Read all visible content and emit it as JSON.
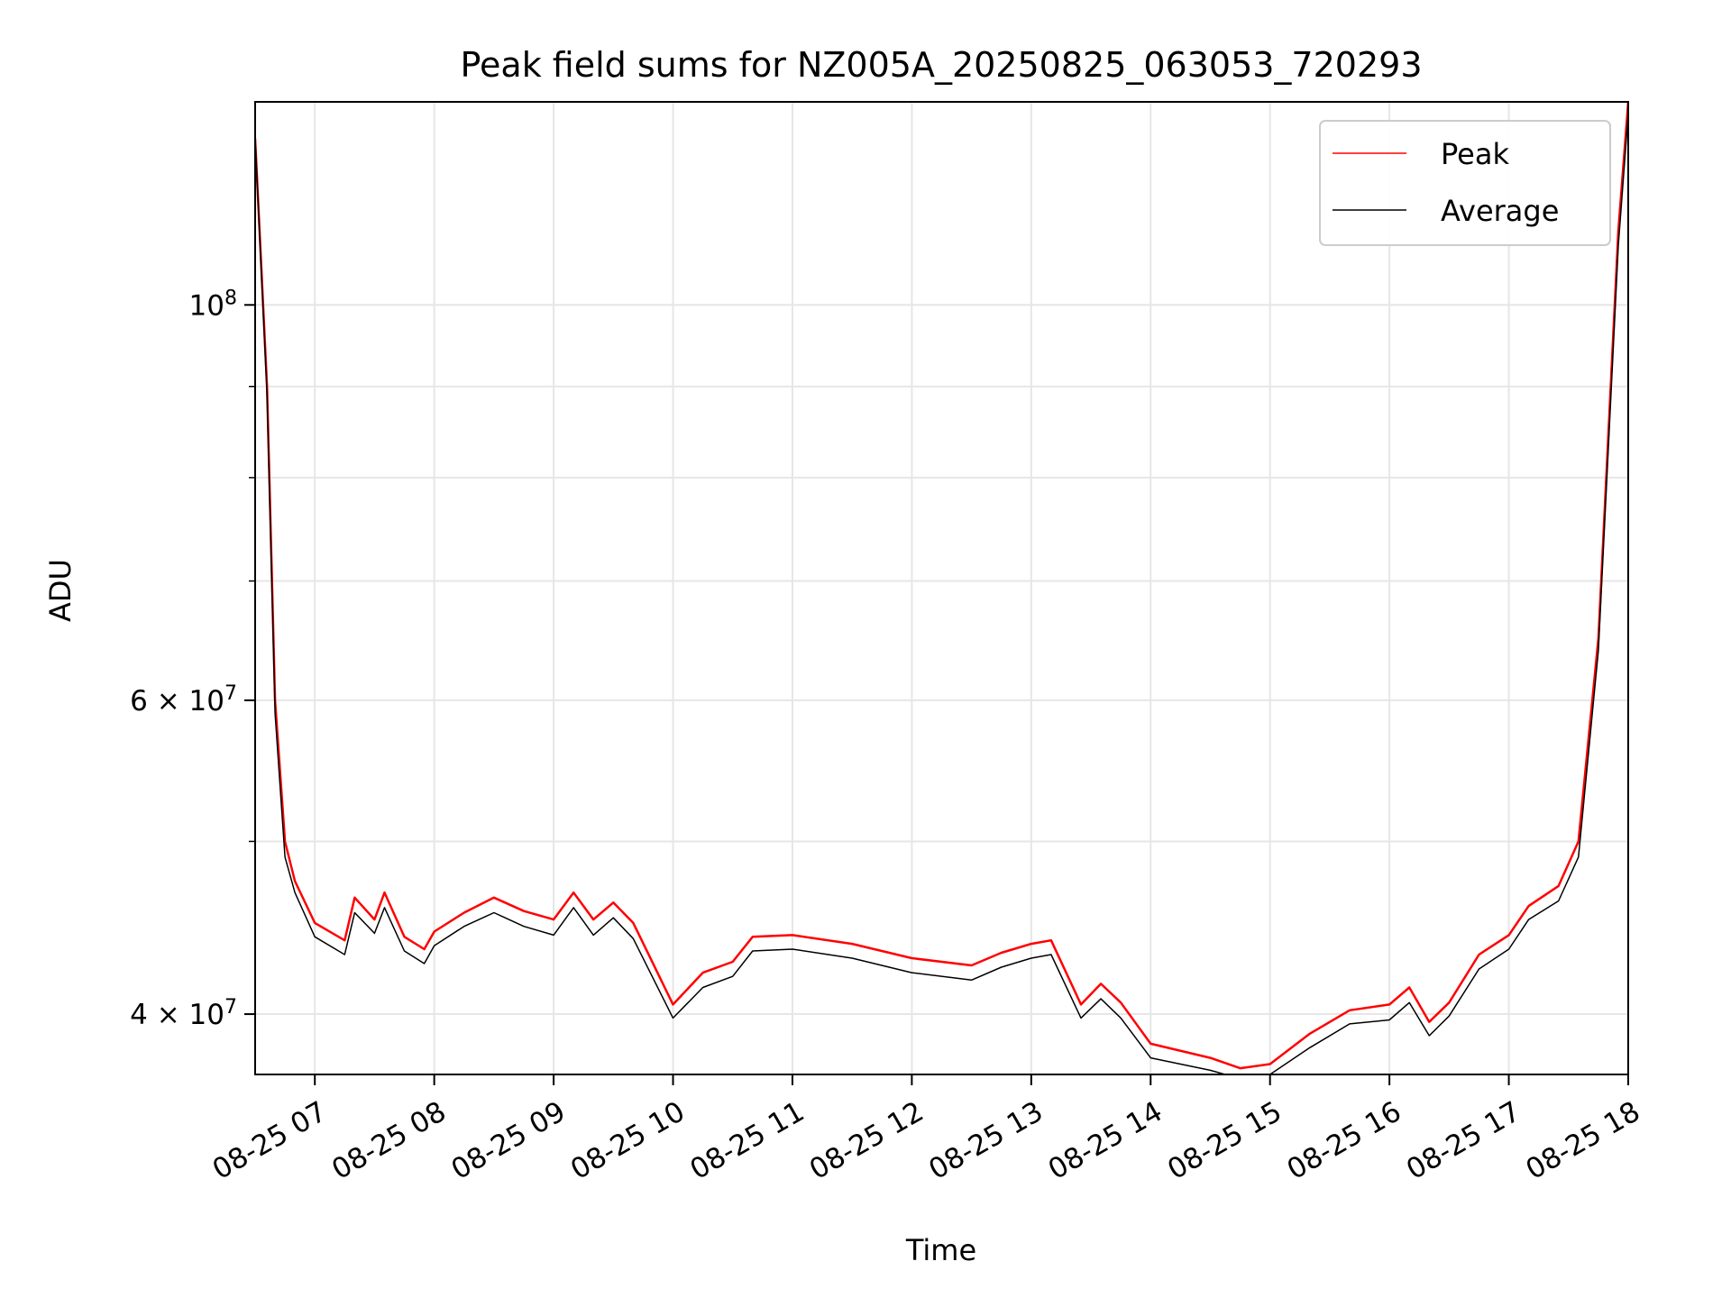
{
  "chart_data": {
    "type": "line",
    "title": "Peak field sums for NZ005A_20250825_063053_720293",
    "xlabel": "Time",
    "ylabel": "ADU",
    "y_scale": "log",
    "grid": true,
    "legend_position": "top-right",
    "xlim": [
      "2025-08-25 06:30",
      "2025-08-25 18:00"
    ],
    "ylim": [
      37000000,
      130000000
    ],
    "x_ticks": [
      {
        "time": "2025-08-25 07:00",
        "label": "08-25 07"
      },
      {
        "time": "2025-08-25 08:00",
        "label": "08-25 08"
      },
      {
        "time": "2025-08-25 09:00",
        "label": "08-25 09"
      },
      {
        "time": "2025-08-25 10:00",
        "label": "08-25 10"
      },
      {
        "time": "2025-08-25 11:00",
        "label": "08-25 11"
      },
      {
        "time": "2025-08-25 12:00",
        "label": "08-25 12"
      },
      {
        "time": "2025-08-25 13:00",
        "label": "08-25 13"
      },
      {
        "time": "2025-08-25 14:00",
        "label": "08-25 14"
      },
      {
        "time": "2025-08-25 15:00",
        "label": "08-25 15"
      },
      {
        "time": "2025-08-25 16:00",
        "label": "08-25 16"
      },
      {
        "time": "2025-08-25 17:00",
        "label": "08-25 17"
      },
      {
        "time": "2025-08-25 18:00",
        "label": "08-25 18"
      }
    ],
    "y_ticks": [
      {
        "value": 40000000,
        "mant": "4",
        "exp": "7",
        "style": "times"
      },
      {
        "value": 60000000,
        "mant": "6",
        "exp": "7",
        "style": "times"
      },
      {
        "value": 100000000,
        "mant": "10",
        "exp": "8",
        "style": "power"
      }
    ],
    "y_minor_ticks": [
      50000000,
      70000000,
      80000000,
      90000000
    ],
    "series": [
      {
        "name": "Peak",
        "color": "#ff0000",
        "points": [
          [
            "2025-08-25 06:30",
            124000000
          ],
          [
            "2025-08-25 06:36",
            90000000
          ],
          [
            "2025-08-25 06:40",
            60000000
          ],
          [
            "2025-08-25 06:45",
            50000000
          ],
          [
            "2025-08-25 06:50",
            47500000
          ],
          [
            "2025-08-25 07:00",
            45000000
          ],
          [
            "2025-08-25 07:15",
            44000000
          ],
          [
            "2025-08-25 07:20",
            46500000
          ],
          [
            "2025-08-25 07:30",
            45200000
          ],
          [
            "2025-08-25 07:35",
            46800000
          ],
          [
            "2025-08-25 07:45",
            44200000
          ],
          [
            "2025-08-25 07:55",
            43500000
          ],
          [
            "2025-08-25 08:00",
            44500000
          ],
          [
            "2025-08-25 08:15",
            45600000
          ],
          [
            "2025-08-25 08:30",
            46500000
          ],
          [
            "2025-08-25 08:45",
            45700000
          ],
          [
            "2025-08-25 09:00",
            45200000
          ],
          [
            "2025-08-25 09:10",
            46800000
          ],
          [
            "2025-08-25 09:20",
            45200000
          ],
          [
            "2025-08-25 09:30",
            46200000
          ],
          [
            "2025-08-25 09:40",
            45000000
          ],
          [
            "2025-08-25 10:00",
            40500000
          ],
          [
            "2025-08-25 10:15",
            42200000
          ],
          [
            "2025-08-25 10:30",
            42800000
          ],
          [
            "2025-08-25 10:40",
            44200000
          ],
          [
            "2025-08-25 11:00",
            44300000
          ],
          [
            "2025-08-25 11:30",
            43800000
          ],
          [
            "2025-08-25 12:00",
            43000000
          ],
          [
            "2025-08-25 12:30",
            42600000
          ],
          [
            "2025-08-25 12:45",
            43300000
          ],
          [
            "2025-08-25 13:00",
            43800000
          ],
          [
            "2025-08-25 13:10",
            44000000
          ],
          [
            "2025-08-25 13:25",
            40500000
          ],
          [
            "2025-08-25 13:35",
            41600000
          ],
          [
            "2025-08-25 13:45",
            40600000
          ],
          [
            "2025-08-25 14:00",
            38500000
          ],
          [
            "2025-08-25 14:30",
            37800000
          ],
          [
            "2025-08-25 14:45",
            37300000
          ],
          [
            "2025-08-25 15:00",
            37500000
          ],
          [
            "2025-08-25 15:20",
            39000000
          ],
          [
            "2025-08-25 15:40",
            40200000
          ],
          [
            "2025-08-25 16:00",
            40500000
          ],
          [
            "2025-08-25 16:10",
            41400000
          ],
          [
            "2025-08-25 16:20",
            39600000
          ],
          [
            "2025-08-25 16:30",
            40600000
          ],
          [
            "2025-08-25 16:45",
            43200000
          ],
          [
            "2025-08-25 17:00",
            44300000
          ],
          [
            "2025-08-25 17:10",
            46000000
          ],
          [
            "2025-08-25 17:25",
            47200000
          ],
          [
            "2025-08-25 17:35",
            50000000
          ],
          [
            "2025-08-25 17:45",
            65000000
          ],
          [
            "2025-08-25 17:55",
            110000000
          ],
          [
            "2025-08-25 18:00",
            130000000
          ]
        ]
      },
      {
        "name": "Average",
        "color": "#000000",
        "points": [
          [
            "2025-08-25 06:30",
            124000000
          ],
          [
            "2025-08-25 06:36",
            89000000
          ],
          [
            "2025-08-25 06:40",
            59000000
          ],
          [
            "2025-08-25 06:45",
            49000000
          ],
          [
            "2025-08-25 06:50",
            46800000
          ],
          [
            "2025-08-25 07:00",
            44200000
          ],
          [
            "2025-08-25 07:15",
            43200000
          ],
          [
            "2025-08-25 07:20",
            45600000
          ],
          [
            "2025-08-25 07:30",
            44400000
          ],
          [
            "2025-08-25 07:35",
            45900000
          ],
          [
            "2025-08-25 07:45",
            43400000
          ],
          [
            "2025-08-25 07:55",
            42700000
          ],
          [
            "2025-08-25 08:00",
            43700000
          ],
          [
            "2025-08-25 08:15",
            44800000
          ],
          [
            "2025-08-25 08:30",
            45600000
          ],
          [
            "2025-08-25 08:45",
            44800000
          ],
          [
            "2025-08-25 09:00",
            44300000
          ],
          [
            "2025-08-25 09:10",
            45900000
          ],
          [
            "2025-08-25 09:20",
            44300000
          ],
          [
            "2025-08-25 09:30",
            45300000
          ],
          [
            "2025-08-25 09:40",
            44100000
          ],
          [
            "2025-08-25 10:00",
            39800000
          ],
          [
            "2025-08-25 10:15",
            41400000
          ],
          [
            "2025-08-25 10:30",
            42000000
          ],
          [
            "2025-08-25 10:40",
            43400000
          ],
          [
            "2025-08-25 11:00",
            43500000
          ],
          [
            "2025-08-25 11:30",
            43000000
          ],
          [
            "2025-08-25 12:00",
            42200000
          ],
          [
            "2025-08-25 12:30",
            41800000
          ],
          [
            "2025-08-25 12:45",
            42500000
          ],
          [
            "2025-08-25 13:00",
            43000000
          ],
          [
            "2025-08-25 13:10",
            43200000
          ],
          [
            "2025-08-25 13:25",
            39800000
          ],
          [
            "2025-08-25 13:35",
            40800000
          ],
          [
            "2025-08-25 13:45",
            39800000
          ],
          [
            "2025-08-25 14:00",
            37800000
          ],
          [
            "2025-08-25 14:30",
            37200000
          ],
          [
            "2025-08-25 14:45",
            36800000
          ],
          [
            "2025-08-25 15:00",
            37000000
          ],
          [
            "2025-08-25 15:20",
            38300000
          ],
          [
            "2025-08-25 15:40",
            39500000
          ],
          [
            "2025-08-25 16:00",
            39700000
          ],
          [
            "2025-08-25 16:10",
            40600000
          ],
          [
            "2025-08-25 16:20",
            38900000
          ],
          [
            "2025-08-25 16:30",
            39900000
          ],
          [
            "2025-08-25 16:45",
            42400000
          ],
          [
            "2025-08-25 17:00",
            43500000
          ],
          [
            "2025-08-25 17:10",
            45200000
          ],
          [
            "2025-08-25 17:25",
            46300000
          ],
          [
            "2025-08-25 17:35",
            49000000
          ],
          [
            "2025-08-25 17:45",
            64000000
          ],
          [
            "2025-08-25 17:55",
            108000000
          ],
          [
            "2025-08-25 18:00",
            128000000
          ]
        ]
      }
    ]
  }
}
